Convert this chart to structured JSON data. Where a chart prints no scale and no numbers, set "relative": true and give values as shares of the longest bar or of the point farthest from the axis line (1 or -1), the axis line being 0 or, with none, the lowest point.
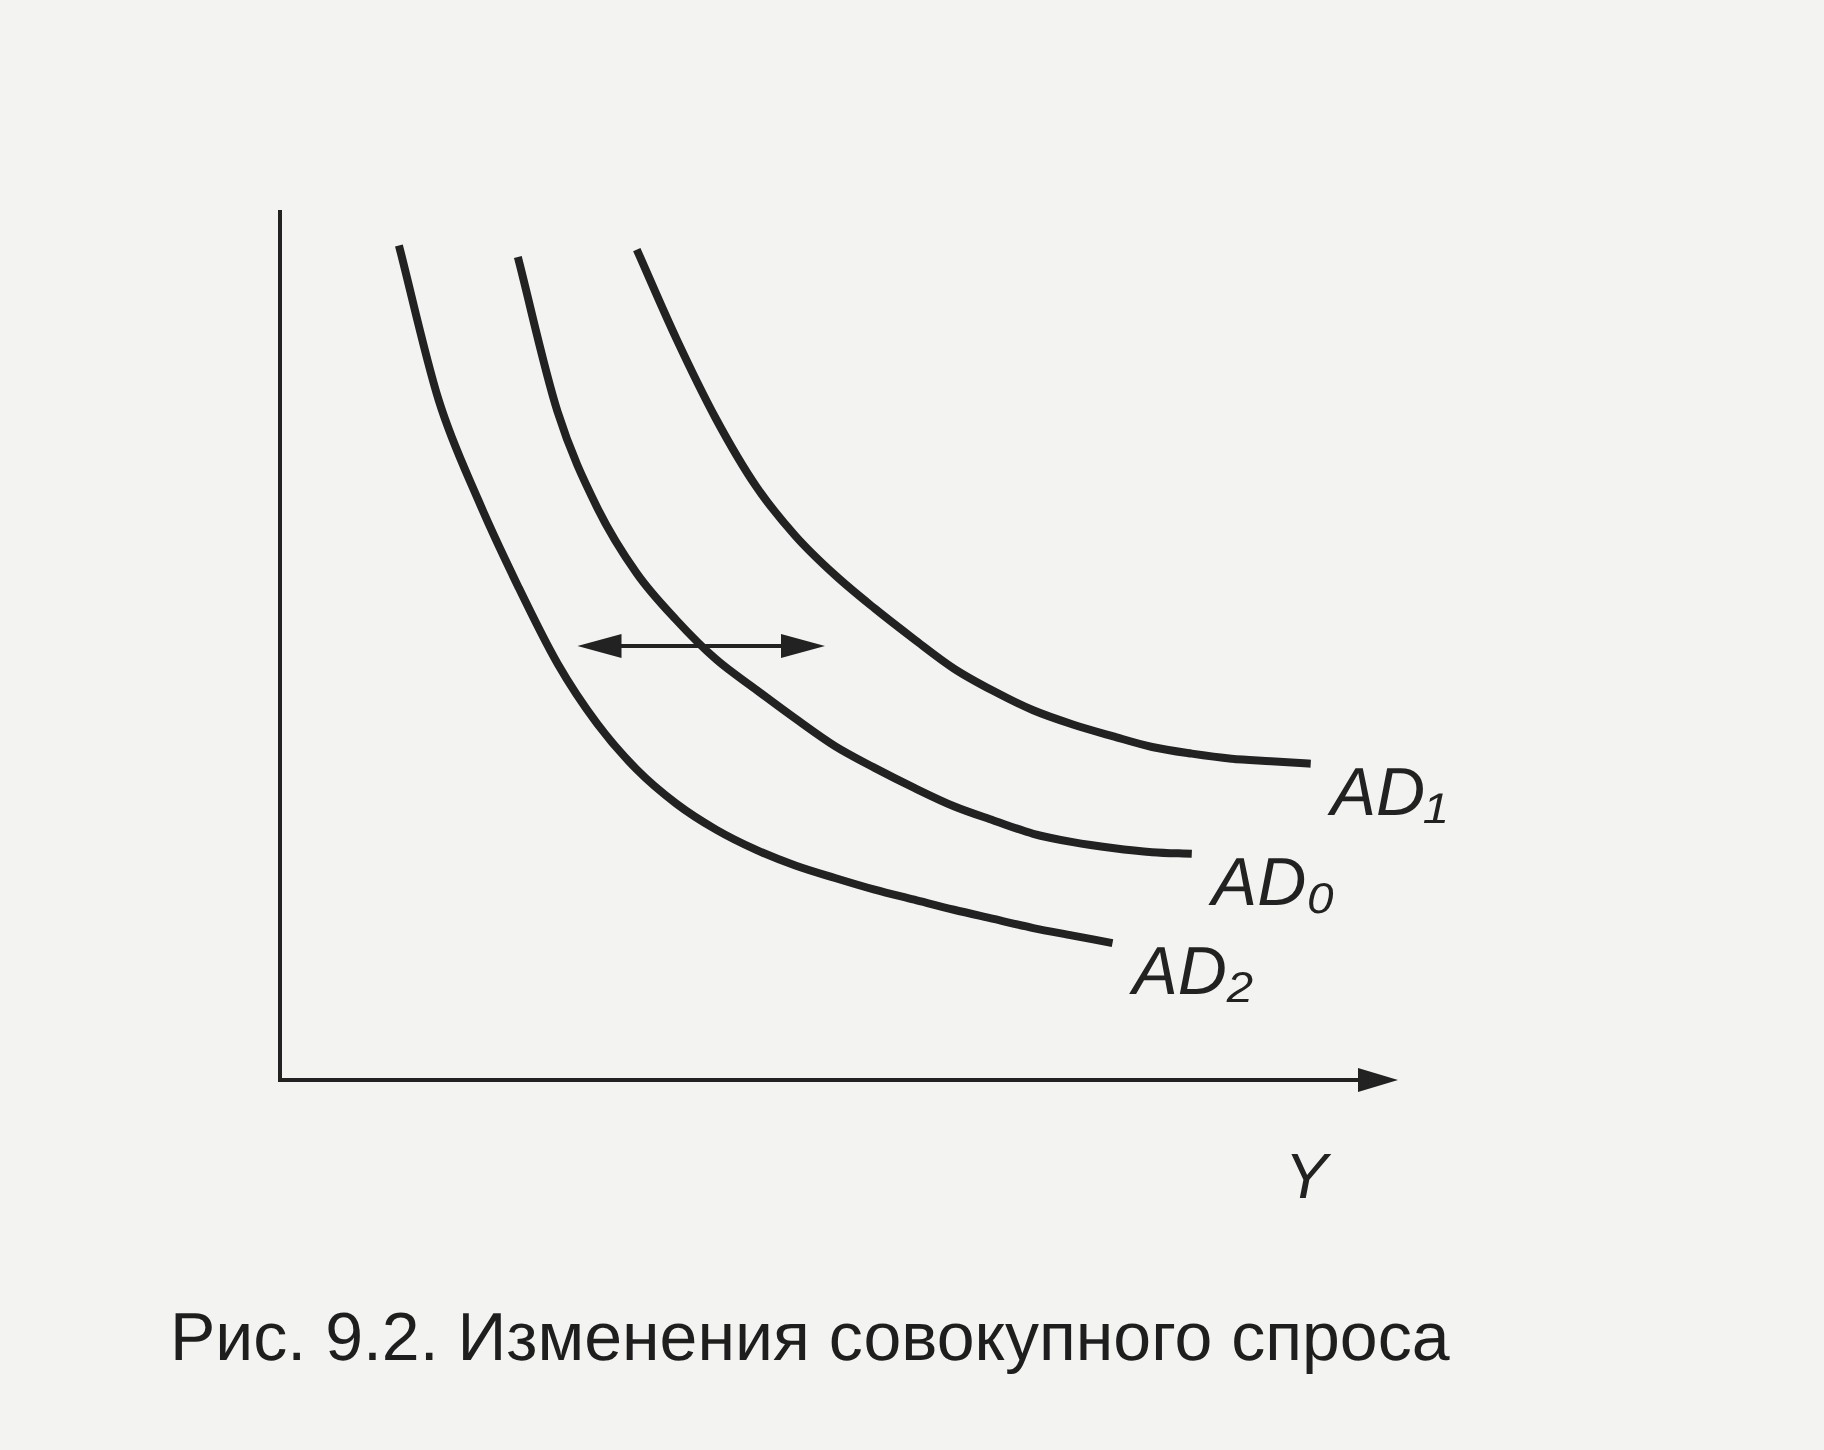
{
  "chart_data": {
    "type": "line",
    "relative": true,
    "xlabel": "Y",
    "categories": [
      null,
      null,
      null,
      null,
      null,
      null,
      null,
      null,
      null,
      null,
      null,
      null,
      null,
      null,
      null,
      null,
      null,
      null,
      null,
      null,
      null,
      null,
      null,
      null,
      null,
      null,
      null,
      null,
      null
    ],
    "series": [
      {
        "name": "AD₁",
        "color": "#222222",
        "values": [
          null,
          null,
          null,
          null,
          null,
          null,
          null,
          null,
          null,
          0.995,
          0.888,
          0.792,
          0.712,
          0.652,
          0.605,
          0.565,
          0.528,
          0.493,
          0.466,
          0.443,
          0.426,
          0.412,
          0.399,
          0.391,
          0.385,
          0.382,
          0.379,
          null,
          null
        ]
      },
      {
        "name": "AD₀",
        "color": "#222222",
        "values": [
          null,
          null,
          null,
          null,
          null,
          null,
          0.986,
          0.801,
          0.686,
          0.607,
          0.551,
          0.504,
          0.468,
          0.433,
          0.4,
          0.374,
          0.35,
          0.328,
          0.311,
          0.295,
          0.285,
          0.278,
          0.273,
          0.271,
          null,
          null,
          null,
          null,
          null
        ]
      },
      {
        "name": "AD₂",
        "color": "#222222",
        "values": [
          null,
          null,
          null,
          1,
          0.815,
          0.695,
          0.592,
          0.499,
          0.427,
          0.372,
          0.331,
          0.3,
          0.276,
          0.257,
          0.242,
          0.228,
          0.216,
          0.204,
          0.193,
          0.182,
          0.173,
          0.164,
          null,
          null,
          null,
          null,
          null,
          null,
          null
        ]
      }
    ],
    "annotations": [
      "Рис. 9.2. Изменения совокупного спроса"
    ]
  }
}
